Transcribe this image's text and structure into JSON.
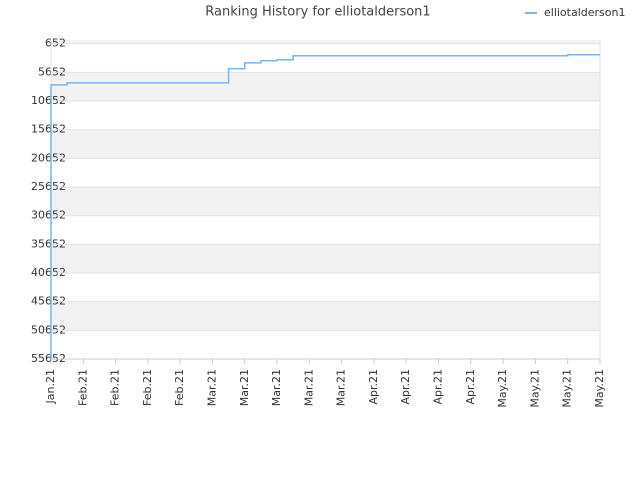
{
  "chart_data": {
    "type": "line",
    "title": "Ranking History for elliotalderson1",
    "categories": [
      "Jan.21",
      null,
      "Feb.21",
      null,
      "Feb.21",
      null,
      "Feb.21",
      null,
      "Feb.21",
      null,
      "Mar.21",
      null,
      "Mar.21",
      null,
      "Mar.21",
      null,
      "Mar.21",
      null,
      "Mar.21",
      null,
      "Apr.21",
      null,
      "Apr.21",
      null,
      "Apr.21",
      null,
      "Apr.21",
      null,
      "May.21",
      null,
      "May.21",
      null,
      "May.21",
      null,
      "May.21"
    ],
    "series": [
      {
        "name": "elliotalderson1",
        "color": "#7cb5ec",
        "values": [
          55652,
          7820,
          7470,
          7470,
          7470,
          7470,
          7470,
          7470,
          7470,
          7470,
          7470,
          7470,
          5020,
          4000,
          3620,
          3450,
          2750,
          2750,
          2750,
          2750,
          2750,
          2750,
          2750,
          2750,
          2750,
          2750,
          2750,
          2750,
          2750,
          2750,
          2750,
          2750,
          2750,
          2575,
          2575
        ]
      }
    ],
    "step": "before",
    "ylim": [
      55652,
      0
    ],
    "yticks": [
      652,
      5652,
      10652,
      15652,
      20652,
      25652,
      30652,
      35652,
      40652,
      45652,
      50652,
      55652
    ],
    "grid": true,
    "legend": "top-right"
  }
}
